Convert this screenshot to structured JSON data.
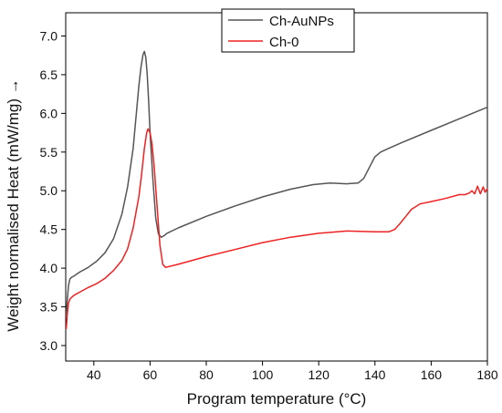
{
  "chart_data": {
    "type": "line",
    "title": "",
    "xlabel": "Program temperature (°C)",
    "ylabel": "Weight normalised Heat (mW/mg) →",
    "xlim": [
      30,
      180
    ],
    "ylim": [
      2.8,
      7.3
    ],
    "xticks": [
      40,
      60,
      80,
      100,
      120,
      140,
      160,
      180
    ],
    "yticks": [
      3.0,
      3.5,
      4.0,
      4.5,
      5.0,
      5.5,
      6.0,
      6.5,
      7.0
    ],
    "xtick_labels": [
      "40",
      "60",
      "80",
      "100",
      "120",
      "140",
      "160",
      "180"
    ],
    "ytick_labels": [
      "3.0",
      "3.5",
      "4.0",
      "4.5",
      "5.0",
      "5.5",
      "6.0",
      "6.5",
      "7.0"
    ],
    "grid": false,
    "legend_position": "top-center",
    "series": [
      {
        "name": "Ch-AuNPs",
        "color": "#555555",
        "x": [
          30.2,
          30.6,
          31.0,
          31.5,
          32.0,
          33.0,
          35.0,
          38.0,
          41.0,
          44.0,
          47.0,
          50.0,
          52.0,
          54.0,
          55.0,
          56.0,
          56.8,
          57.5,
          58.0,
          58.5,
          59.0,
          59.5,
          60.0,
          61.0,
          62.0,
          63.0,
          64.0,
          65.0,
          66.0,
          70.0,
          80.0,
          90.0,
          100.0,
          110.0,
          118.0,
          124.0,
          130.0,
          134.0,
          136.0,
          138.0,
          140.0,
          142.0,
          145.0,
          150.0,
          160.0,
          170.0,
          180.0
        ],
        "y": [
          3.4,
          3.6,
          3.78,
          3.86,
          3.88,
          3.9,
          3.95,
          4.01,
          4.09,
          4.2,
          4.38,
          4.7,
          5.05,
          5.55,
          5.95,
          6.35,
          6.6,
          6.76,
          6.8,
          6.72,
          6.5,
          6.15,
          5.75,
          5.15,
          4.65,
          4.44,
          4.4,
          4.42,
          4.45,
          4.52,
          4.67,
          4.8,
          4.92,
          5.02,
          5.08,
          5.1,
          5.09,
          5.1,
          5.16,
          5.3,
          5.44,
          5.5,
          5.55,
          5.63,
          5.78,
          5.93,
          6.08
        ]
      },
      {
        "name": "Ch-0",
        "color": "#ee2222",
        "x": [
          30.2,
          30.6,
          31.0,
          31.5,
          32.0,
          33.0,
          35.0,
          38.0,
          41.0,
          44.0,
          47.0,
          50.0,
          52.0,
          54.0,
          56.0,
          57.0,
          58.0,
          58.8,
          59.3,
          60.0,
          60.7,
          61.5,
          62.5,
          63.5,
          64.5,
          65.5,
          70.0,
          80.0,
          90.0,
          100.0,
          110.0,
          120.0,
          130.0,
          140.0,
          145.0,
          147.0,
          149.0,
          151.0,
          153.0,
          156.0,
          160.0,
          165.0,
          170.0,
          172.0,
          173.5,
          174.5,
          175.5,
          176.5,
          177.5,
          178.5,
          179.2,
          180.0
        ],
        "y": [
          3.22,
          3.42,
          3.55,
          3.6,
          3.62,
          3.65,
          3.69,
          3.75,
          3.8,
          3.87,
          3.97,
          4.1,
          4.25,
          4.52,
          4.92,
          5.22,
          5.55,
          5.75,
          5.8,
          5.75,
          5.6,
          5.3,
          4.8,
          4.3,
          4.05,
          4.01,
          4.05,
          4.15,
          4.24,
          4.33,
          4.4,
          4.45,
          4.48,
          4.47,
          4.47,
          4.5,
          4.58,
          4.67,
          4.76,
          4.83,
          4.86,
          4.9,
          4.95,
          4.95,
          4.97,
          5.0,
          4.96,
          5.06,
          4.96,
          5.05,
          4.98,
          5.03
        ]
      }
    ]
  }
}
